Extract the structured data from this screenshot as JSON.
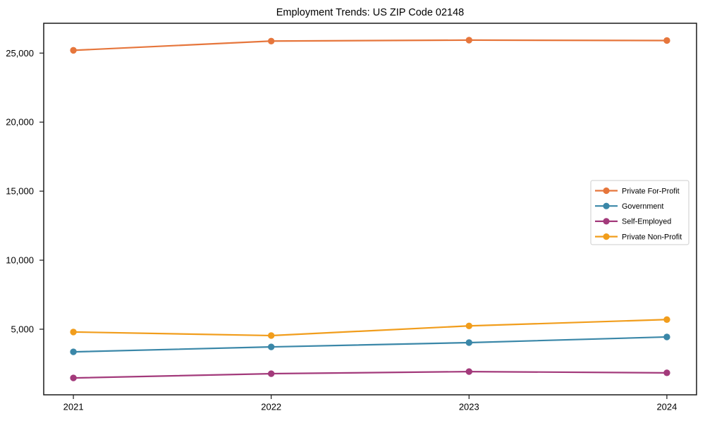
{
  "chart_data": {
    "type": "line",
    "title": "Employment Trends: US ZIP Code 02148",
    "xlabel": "",
    "ylabel": "",
    "x": [
      2021,
      2022,
      2023,
      2024
    ],
    "xtick_labels": [
      "2021",
      "2022",
      "2023",
      "2024"
    ],
    "yticks": [
      5000,
      10000,
      15000,
      20000,
      25000
    ],
    "ytick_labels": [
      "5,000",
      "10,000",
      "15,000",
      "20,000",
      "25,000"
    ],
    "xlim": [
      2020.85,
      2024.15
    ],
    "ylim": [
      250,
      27160
    ],
    "grid": false,
    "marker": "circle",
    "legend_position": "center right",
    "series": [
      {
        "name": "Private For-Profit",
        "color": "#e6763c",
        "values": [
          25200,
          25870,
          25940,
          25910
        ]
      },
      {
        "name": "Government",
        "color": "#3a87a8",
        "values": [
          3360,
          3720,
          4030,
          4440
        ]
      },
      {
        "name": "Self-Employed",
        "color": "#a33a7b",
        "values": [
          1470,
          1780,
          1930,
          1840
        ]
      },
      {
        "name": "Private Non-Profit",
        "color": "#f19d1c",
        "values": [
          4800,
          4540,
          5240,
          5700
        ]
      }
    ],
    "axis_color": "#1a1a1a",
    "legend_border_color": "#cccccc",
    "background_color": "#ffffff"
  }
}
